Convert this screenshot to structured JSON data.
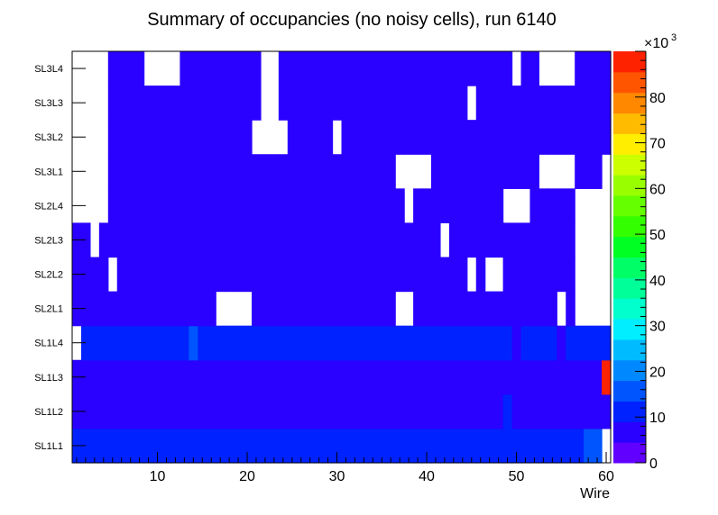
{
  "chart_data": {
    "type": "heatmap",
    "title": "Summary of occupancies (no noisy cells), run 6140",
    "xlabel": "Wire",
    "ylabel": "",
    "xlim": [
      0.5,
      60.5
    ],
    "x_ticks": [
      10,
      20,
      30,
      40,
      50,
      60
    ],
    "x_tick_labels": [
      "10",
      "20",
      "30",
      "40",
      "50",
      "60"
    ],
    "rows": [
      "SL1L1",
      "SL1L2",
      "SL1L3",
      "SL1L4",
      "SL2L1",
      "SL2L2",
      "SL2L3",
      "SL2L4",
      "SL3L1",
      "SL3L2",
      "SL3L3",
      "SL3L4"
    ],
    "zlim": [
      0,
      90000
    ],
    "z_multiplier_label": "×10",
    "z_multiplier_exponent": "3",
    "z_ticks": [
      0,
      10,
      20,
      30,
      40,
      50,
      60,
      70,
      80
    ],
    "z_tick_labels": [
      "0",
      "10",
      "20",
      "30",
      "40",
      "50",
      "60",
      "70",
      "80"
    ],
    "palette": [
      "#6200ff",
      "#2a00ff",
      "#0022ff",
      "#0055ff",
      "#0088ff",
      "#00bbff",
      "#00eeff",
      "#00ffcc",
      "#00ff99",
      "#00ff66",
      "#00ff22",
      "#33ff00",
      "#66ff00",
      "#99ff00",
      "#ccff00",
      "#ffee00",
      "#ffbb00",
      "#ff8800",
      "#ff5500",
      "#ff2200"
    ],
    "empty_color": "#ffffff",
    "default_row_values": {
      "SL1L1": 13000,
      "SL1L2": 6000,
      "SL1L3": 6000,
      "SL1L4": 11000,
      "SL2L1": 6000,
      "SL2L2": 6000,
      "SL2L3": 6000,
      "SL2L4": 6000,
      "SL3L1": 6000,
      "SL3L2": 6000,
      "SL3L3": 6000,
      "SL3L4": 6000
    },
    "empty_cells": {
      "SL3L4": [
        1,
        2,
        3,
        4,
        9,
        10,
        11,
        12,
        22,
        23,
        50,
        53,
        54,
        55,
        56
      ],
      "SL3L3": [
        1,
        2,
        3,
        4,
        22,
        23,
        45
      ],
      "SL3L2": [
        1,
        2,
        3,
        4,
        21,
        22,
        23,
        24,
        30
      ],
      "SL3L1": [
        1,
        2,
        3,
        4,
        37,
        38,
        39,
        40,
        53,
        54,
        55,
        56,
        60
      ],
      "SL2L4": [
        1,
        2,
        3,
        4,
        38,
        49,
        50,
        51,
        57,
        58,
        59,
        60
      ],
      "SL2L3": [
        3,
        42,
        57,
        58,
        59,
        60
      ],
      "SL2L2": [
        5,
        45,
        47,
        48,
        57,
        58,
        59,
        60
      ],
      "SL2L1": [
        17,
        18,
        19,
        20,
        37,
        38,
        55,
        57,
        58,
        59,
        60
      ],
      "SL1L4": [
        1
      ],
      "SL1L1": [
        60
      ]
    },
    "overrides": [
      {
        "row": "SL1L4",
        "wire": 14,
        "value": 14000
      },
      {
        "row": "SL1L4",
        "wire": 37,
        "value": 9000
      },
      {
        "row": "SL1L4",
        "wire": 38,
        "value": 10000
      },
      {
        "row": "SL1L4",
        "wire": 39,
        "value": 9000
      },
      {
        "row": "SL1L4",
        "wire": 40,
        "value": 10000
      },
      {
        "row": "SL1L4",
        "wire": 41,
        "value": 10000
      },
      {
        "row": "SL1L4",
        "wire": 45,
        "value": 9000
      },
      {
        "row": "SL1L4",
        "wire": 46,
        "value": 9000
      },
      {
        "row": "SL1L4",
        "wire": 47,
        "value": 9000
      },
      {
        "row": "SL1L4",
        "wire": 48,
        "value": 9000
      },
      {
        "row": "SL1L4",
        "wire": 49,
        "value": 9000
      },
      {
        "row": "SL1L4",
        "wire": 50,
        "value": 8000
      },
      {
        "row": "SL1L4",
        "wire": 51,
        "value": 9000
      },
      {
        "row": "SL1L4",
        "wire": 52,
        "value": 9000
      },
      {
        "row": "SL1L4",
        "wire": 53,
        "value": 9000
      },
      {
        "row": "SL1L4",
        "wire": 54,
        "value": 9000
      },
      {
        "row": "SL1L4",
        "wire": 55,
        "value": 6000
      },
      {
        "row": "SL1L4",
        "wire": 59,
        "value": 9000
      },
      {
        "row": "SL1L4",
        "wire": 60,
        "value": 13000
      },
      {
        "row": "SL1L3",
        "wire": 60,
        "value": 88000
      },
      {
        "row": "SL1L2",
        "wire": 49,
        "value": 9000
      },
      {
        "row": "SL1L1",
        "wire": 58,
        "value": 16000
      },
      {
        "row": "SL1L1",
        "wire": 59,
        "value": 16000
      }
    ]
  }
}
